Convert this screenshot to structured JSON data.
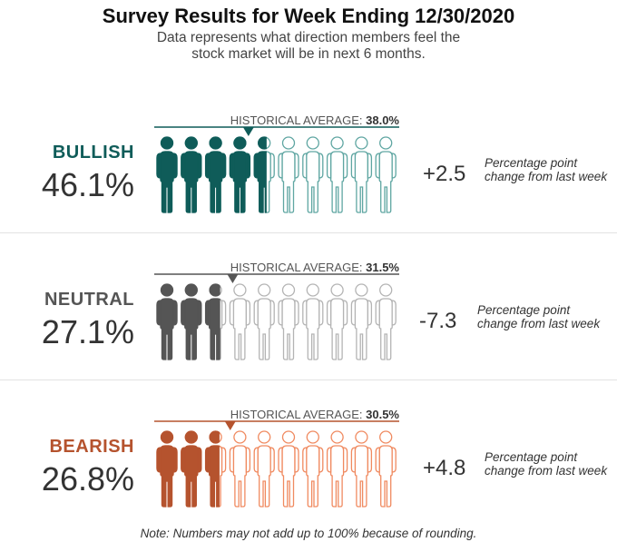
{
  "title": "Survey Results for Week Ending 12/30/2020",
  "subtitle": "Data represents what direction members feel the stock market will be in next 6 months.",
  "note": "Note: Numbers may not add up to 100% because of rounding.",
  "chart_data": {
    "type": "pictogram",
    "icons_total": 10,
    "hist_label": "HISTORICAL AVERAGE:",
    "change_note": "Percentage point change from last week",
    "series": [
      {
        "name": "BULLISH",
        "value": 46.1,
        "display": "46.1%",
        "historical": 38.0,
        "historical_display": "38.0%",
        "change": "+2.5",
        "color": "#0f5c59",
        "light": "#5fa6a2"
      },
      {
        "name": "NEUTRAL",
        "value": 27.1,
        "display": "27.1%",
        "historical": 31.5,
        "historical_display": "31.5%",
        "change": "-7.3",
        "color": "#555555",
        "light": "#b4b4b4"
      },
      {
        "name": "BEARISH",
        "value": 26.8,
        "display": "26.8%",
        "historical": 30.5,
        "historical_display": "30.5%",
        "change": "+4.8",
        "color": "#b5532e",
        "light": "#f08a60"
      }
    ]
  }
}
